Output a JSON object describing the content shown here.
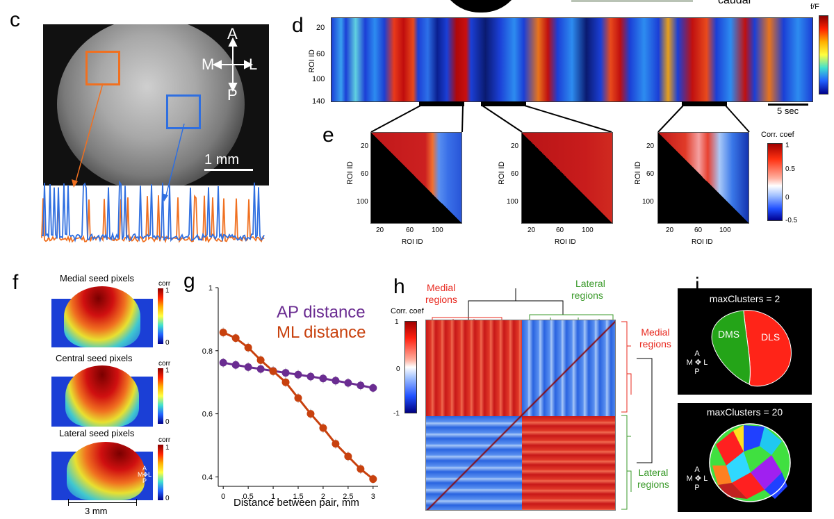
{
  "panels": {
    "c": "c",
    "d": "d",
    "e": "e",
    "f": "f",
    "g": "g",
    "h": "h",
    "i": "i"
  },
  "top_right_text": "caudal",
  "panel_c": {
    "compass": {
      "a": "A",
      "m": "M",
      "l": "L",
      "p": "P"
    },
    "scalebar": "1 mm",
    "colors": {
      "orange": "#f07020",
      "blue": "#2f6fe0"
    }
  },
  "panel_d": {
    "ylabel": "ROI ID",
    "yticks": [
      "20",
      "60",
      "100",
      "140"
    ],
    "colorbar_label": "f/F",
    "scalebar": "5 sec"
  },
  "panel_e": {
    "ylabel": "ROI ID",
    "xlabel": "ROI ID",
    "yticks": [
      "20",
      "60",
      "100"
    ],
    "xticks": [
      "20",
      "60",
      "100"
    ],
    "colorbar_title": "Corr. coef",
    "colorbar_ticks": [
      "1",
      "0.5",
      "0",
      "-0.5"
    ]
  },
  "panel_f": {
    "titles": [
      "Medial seed pixels",
      "Central seed pixels",
      "Lateral seed pixels"
    ],
    "colorbar_label": "corr",
    "colorbar_ticks": [
      "1",
      "0"
    ],
    "compass": {
      "a": "A",
      "m": "M",
      "l": "L",
      "p": "P"
    },
    "scalebar": "3 mm"
  },
  "panel_h": {
    "colorbar_title": "Corr. coef",
    "colorbar_ticks": [
      "1",
      "0",
      "-1"
    ],
    "medial_label": [
      "Medial",
      "regions"
    ],
    "lateral_label": [
      "Lateral",
      "regions"
    ],
    "right_medial_label": [
      "Medial",
      "regions"
    ],
    "right_lateral_label": [
      "Lateral",
      "regions"
    ]
  },
  "panel_i": {
    "title1": "maxClusters = 2",
    "title2": "maxClusters = 20",
    "dms": "DMS",
    "dls": "DLS",
    "compass": {
      "a": "A",
      "m": "M",
      "l": "L",
      "p": "P"
    }
  },
  "chart_data": {
    "type": "line",
    "xlabel": "Distance between pair, mm",
    "ylabel": "",
    "xlim": [
      -0.1,
      3.1
    ],
    "ylim": [
      0.37,
      1.0
    ],
    "xticks": [
      "0",
      "0.5",
      "1",
      "1.5",
      "2",
      "2.5",
      "3"
    ],
    "yticks": [
      "0.4",
      "0.6",
      "0.8",
      "1"
    ],
    "x": [
      0,
      0.25,
      0.5,
      0.75,
      1.0,
      1.25,
      1.5,
      1.75,
      2.0,
      2.25,
      2.5,
      2.75,
      3.0
    ],
    "series": [
      {
        "name": "AP distance",
        "color": "#6a2c91",
        "values": [
          0.762,
          0.755,
          0.748,
          0.742,
          0.736,
          0.73,
          0.724,
          0.718,
          0.712,
          0.705,
          0.698,
          0.69,
          0.682
        ]
      },
      {
        "name": "ML distance",
        "color": "#c8410e",
        "values": [
          0.858,
          0.84,
          0.81,
          0.77,
          0.735,
          0.7,
          0.65,
          0.6,
          0.555,
          0.505,
          0.465,
          0.425,
          0.393
        ]
      }
    ],
    "legend": "top-right"
  }
}
